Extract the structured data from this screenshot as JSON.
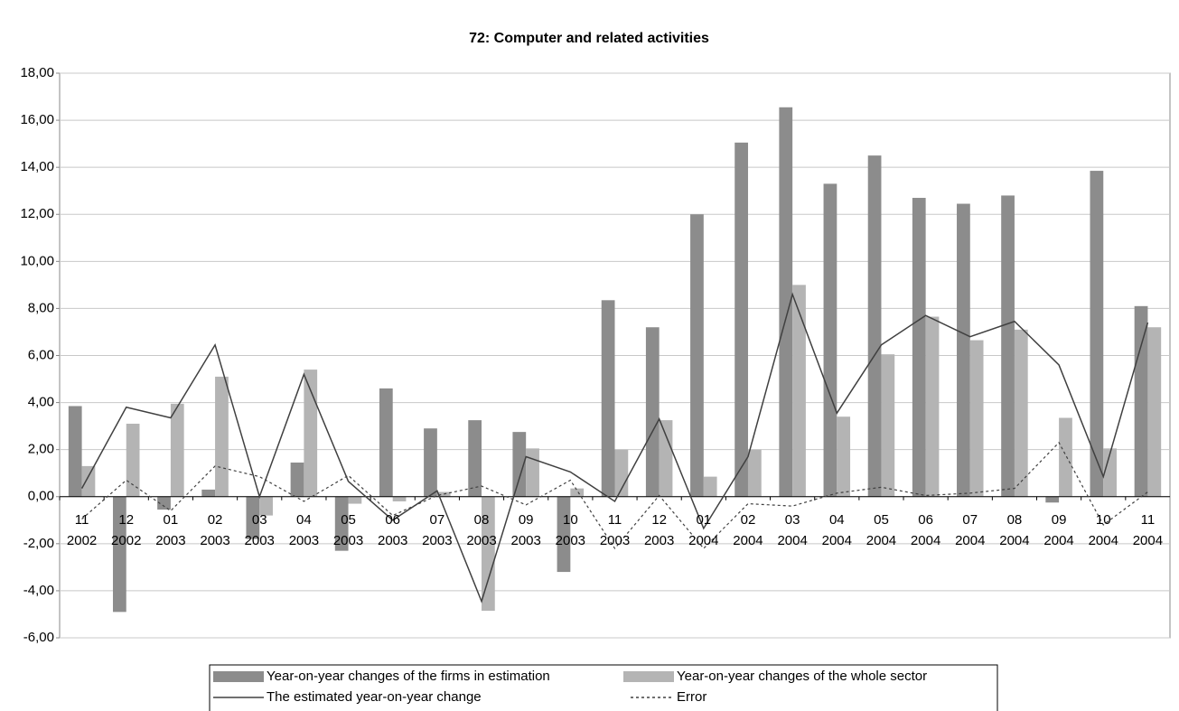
{
  "chart_data": {
    "type": "bar_line",
    "title": "72: Computer and related activities",
    "categories": [
      [
        "11",
        "2002"
      ],
      [
        "12",
        "2002"
      ],
      [
        "01",
        "2003"
      ],
      [
        "02",
        "2003"
      ],
      [
        "03",
        "2003"
      ],
      [
        "04",
        "2003"
      ],
      [
        "05",
        "2003"
      ],
      [
        "06",
        "2003"
      ],
      [
        "07",
        "2003"
      ],
      [
        "08",
        "2003"
      ],
      [
        "09",
        "2003"
      ],
      [
        "10",
        "2003"
      ],
      [
        "11",
        "2003"
      ],
      [
        "12",
        "2003"
      ],
      [
        "01",
        "2004"
      ],
      [
        "02",
        "2004"
      ],
      [
        "03",
        "2004"
      ],
      [
        "04",
        "2004"
      ],
      [
        "05",
        "2004"
      ],
      [
        "06",
        "2004"
      ],
      [
        "07",
        "2004"
      ],
      [
        "08",
        "2004"
      ],
      [
        "09",
        "2004"
      ],
      [
        "10",
        "2004"
      ],
      [
        "11",
        "2004"
      ]
    ],
    "series": [
      {
        "name": "Year-on-year changes of the firms in estimation",
        "kind": "bar",
        "color": "#8c8c8c",
        "values": [
          3.85,
          -4.9,
          -0.55,
          0.3,
          -1.8,
          1.45,
          -2.3,
          4.6,
          2.9,
          3.25,
          2.75,
          -3.2,
          8.35,
          7.2,
          12.0,
          15.05,
          16.55,
          13.3,
          14.5,
          12.7,
          12.45,
          12.8,
          -0.25,
          13.85,
          8.1
        ]
      },
      {
        "name": "Year-on-year changes of the whole sector",
        "kind": "bar",
        "color": "#b4b4b4",
        "values": [
          1.3,
          3.1,
          3.95,
          5.1,
          -0.8,
          5.4,
          -0.3,
          -0.2,
          0.2,
          -4.85,
          2.05,
          0.35,
          2.0,
          3.25,
          0.85,
          2.0,
          9.0,
          3.4,
          6.05,
          7.65,
          6.65,
          7.1,
          3.35,
          2.05,
          7.2
        ]
      },
      {
        "name": "The estimated year-on-year change",
        "kind": "line",
        "color": "#404040",
        "values": [
          0.35,
          3.8,
          3.35,
          6.45,
          0.0,
          5.2,
          0.65,
          -1.0,
          0.25,
          -4.45,
          1.7,
          1.05,
          -0.2,
          3.3,
          -1.35,
          1.7,
          8.6,
          3.55,
          6.45,
          7.7,
          6.8,
          7.45,
          5.6,
          0.85,
          7.4
        ]
      },
      {
        "name": "Error",
        "kind": "dashed",
        "color": "#404040",
        "values": [
          -0.95,
          0.7,
          -0.6,
          1.3,
          0.85,
          -0.2,
          0.9,
          -0.8,
          0.05,
          0.45,
          -0.35,
          0.7,
          -2.2,
          0.05,
          -2.2,
          -0.3,
          -0.4,
          0.15,
          0.4,
          0.05,
          0.15,
          0.35,
          2.3,
          -1.2,
          0.2
        ]
      }
    ],
    "ylim": [
      -6,
      18
    ],
    "yticks": [
      {
        "value": -6,
        "label": "-6,00"
      },
      {
        "value": -4,
        "label": "-4,00"
      },
      {
        "value": -2,
        "label": "-2,00"
      },
      {
        "value": 0,
        "label": "0,00"
      },
      {
        "value": 2,
        "label": "2,00"
      },
      {
        "value": 4,
        "label": "4,00"
      },
      {
        "value": 6,
        "label": "6,00"
      },
      {
        "value": 8,
        "label": "8,00"
      },
      {
        "value": 10,
        "label": "10,00"
      },
      {
        "value": 12,
        "label": "12,00"
      },
      {
        "value": 14,
        "label": "14,00"
      },
      {
        "value": 16,
        "label": "16,00"
      },
      {
        "value": 18,
        "label": "18,00"
      }
    ],
    "grid": true
  }
}
